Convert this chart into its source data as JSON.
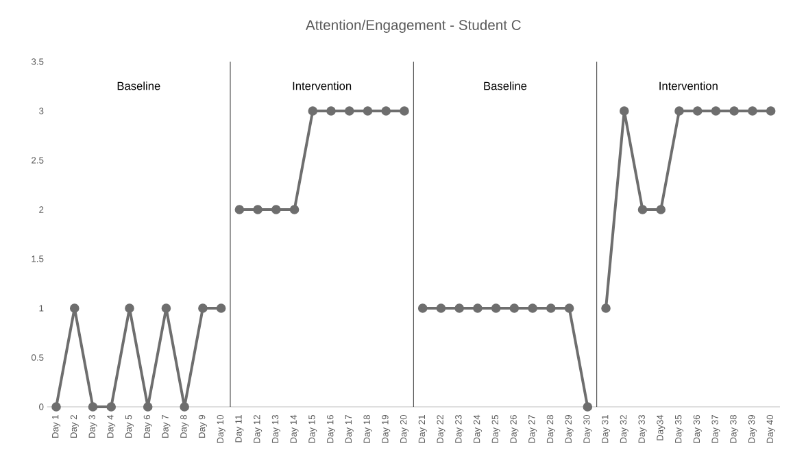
{
  "chart_data": {
    "type": "line",
    "title": "Attention/Engagement - Student C",
    "categories": [
      "Day 1",
      "Day 2",
      "Day 3",
      "Day 4",
      "Day 5",
      "Day 6",
      "Day 7",
      "Day 8",
      "Day 9",
      "Day 10",
      "Day 11",
      "Day 12",
      "Day 13",
      "Day 14",
      "Day 15",
      "Day 16",
      "Day 17",
      "Day 18",
      "Day 19",
      "Day 20",
      "Day 21",
      "Day 22",
      "Day 23",
      "Day 24",
      "Day 25",
      "Day 26",
      "Day 27",
      "Day 28",
      "Day 29",
      "Day 30",
      "Day 31",
      "Day 32",
      "Day 33",
      "Day34",
      "Day 35",
      "Day 36",
      "Day 37",
      "Day 38",
      "Day 39",
      "Day 40"
    ],
    "series": [
      {
        "color": "#6e6e6e",
        "values": [
          0,
          1,
          0,
          0,
          1,
          0,
          1,
          0,
          1,
          1,
          null,
          null,
          null,
          null,
          null,
          null,
          null,
          null,
          null,
          null,
          null,
          null,
          null,
          null,
          null,
          null,
          null,
          null,
          null,
          null,
          null,
          null,
          null,
          null,
          null,
          null,
          null,
          null,
          null,
          null
        ]
      },
      {
        "color": "#6e6e6e",
        "values": [
          null,
          null,
          null,
          null,
          null,
          null,
          null,
          null,
          null,
          null,
          2,
          2,
          2,
          2,
          3,
          3,
          3,
          3,
          3,
          3,
          null,
          null,
          null,
          null,
          null,
          null,
          null,
          null,
          null,
          null,
          null,
          null,
          null,
          null,
          null,
          null,
          null,
          null,
          null,
          null
        ]
      },
      {
        "color": "#6e6e6e",
        "values": [
          null,
          null,
          null,
          null,
          null,
          null,
          null,
          null,
          null,
          null,
          null,
          null,
          null,
          null,
          null,
          null,
          null,
          null,
          null,
          null,
          1,
          1,
          1,
          1,
          1,
          1,
          1,
          1,
          1,
          0,
          null,
          null,
          null,
          null,
          null,
          null,
          null,
          null,
          null,
          null
        ]
      },
      {
        "color": "#6e6e6e",
        "values": [
          null,
          null,
          null,
          null,
          null,
          null,
          null,
          null,
          null,
          null,
          null,
          null,
          null,
          null,
          null,
          null,
          null,
          null,
          null,
          null,
          null,
          null,
          null,
          null,
          null,
          null,
          null,
          null,
          null,
          null,
          1,
          3,
          2,
          2,
          3,
          3,
          3,
          3,
          3,
          3
        ]
      }
    ],
    "ylim": [
      0,
      3.5
    ],
    "yticks": [
      0,
      0.5,
      1,
      1.5,
      2,
      2.5,
      3,
      3.5
    ],
    "marker": "circle",
    "line_style": "solid",
    "annotations": [
      "Baseline",
      "Intervention",
      "Baseline",
      "Intervention"
    ]
  }
}
